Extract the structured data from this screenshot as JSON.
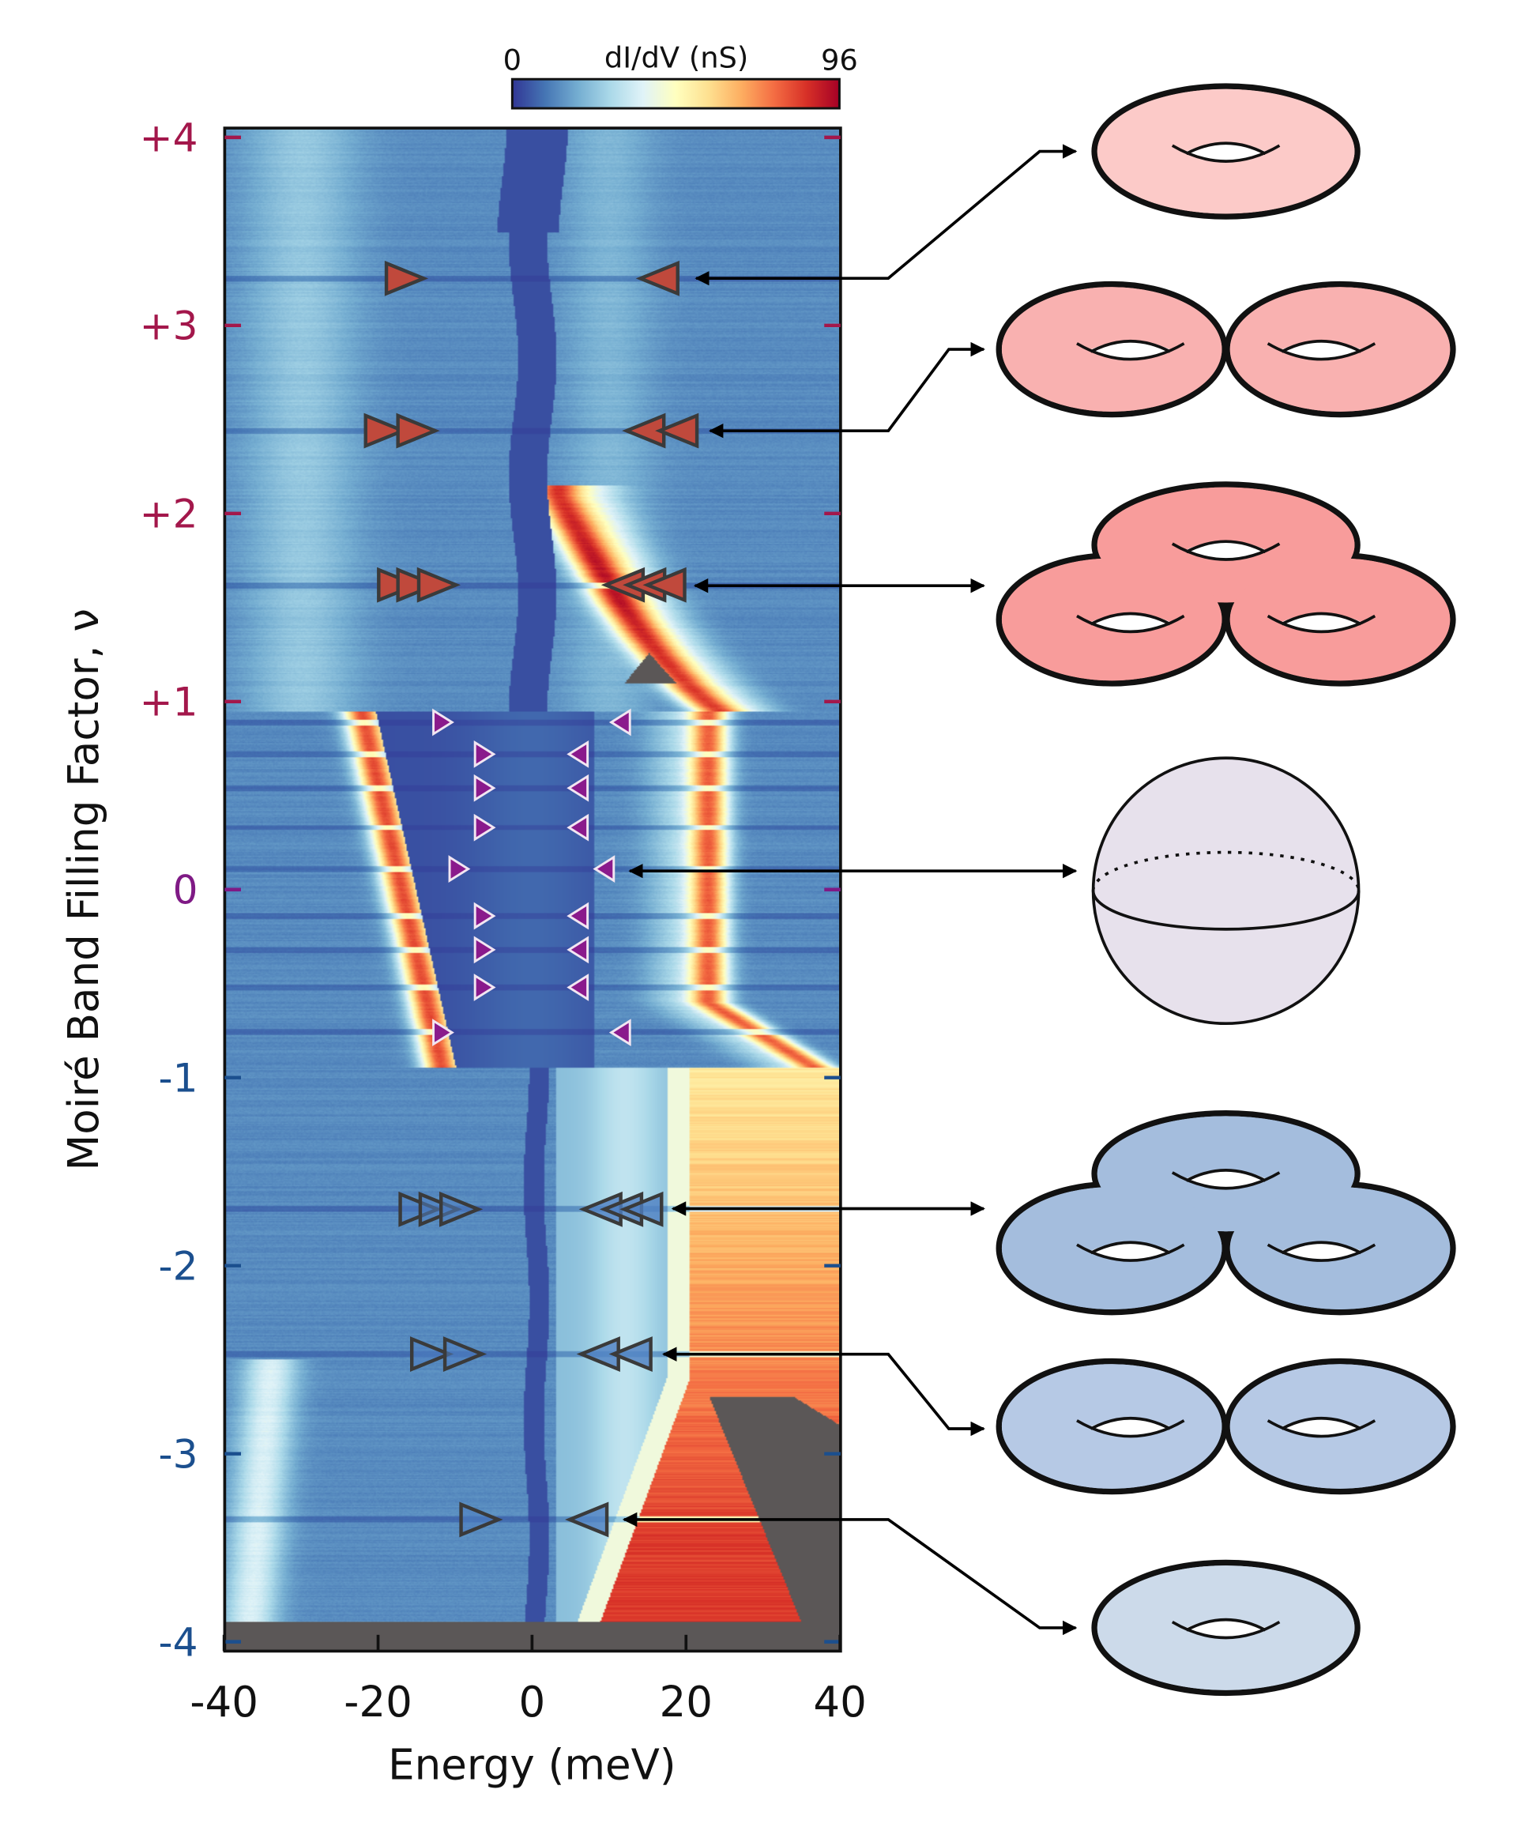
{
  "chart_data": {
    "type": "heatmap",
    "xlabel": "Energy (meV)",
    "ylabel": "Moiré Band Filling Factor, ν",
    "xlim": [
      -40,
      40
    ],
    "ylim": [
      -4.05,
      4.05
    ],
    "xticks": [
      {
        "value": -40,
        "label": "-40"
      },
      {
        "value": -20,
        "label": "-20"
      },
      {
        "value": 0,
        "label": "0"
      },
      {
        "value": 20,
        "label": "20"
      },
      {
        "value": 40,
        "label": "40"
      }
    ],
    "yticks": [
      {
        "value": 4,
        "label": "+4",
        "color": "#a3174b"
      },
      {
        "value": 3,
        "label": "+3",
        "color": "#a3174b"
      },
      {
        "value": 2,
        "label": "+2",
        "color": "#a3174b"
      },
      {
        "value": 1,
        "label": "+1",
        "color": "#a3174b"
      },
      {
        "value": 0,
        "label": "0",
        "color": "#7f1a85"
      },
      {
        "value": -1,
        "label": "-1",
        "color": "#1b4f8e"
      },
      {
        "value": -2,
        "label": "-2",
        "color": "#1b4f8e"
      },
      {
        "value": -3,
        "label": "-3",
        "color": "#1b4f8e"
      },
      {
        "value": -4,
        "label": "-4",
        "color": "#1b4f8e"
      }
    ],
    "colorbar": {
      "label": "dI/dV (nS)",
      "min_label": "0",
      "max_label": "96",
      "min": 0,
      "max": 96,
      "colormap": [
        "#313695",
        "#4575b4",
        "#74add1",
        "#abd9e9",
        "#e0f3f8",
        "#ffffbf",
        "#fee090",
        "#fdae61",
        "#f46d43",
        "#d73027",
        "#a50026"
      ]
    },
    "no_data_color": "#5b5757",
    "marker_groups": [
      {
        "filling": 3.25,
        "style": "red",
        "right_pointing": [
          -16.5
        ],
        "left_pointing": [
          16.5
        ]
      },
      {
        "filling": 2.44,
        "style": "red",
        "right_pointing": [
          -19.2,
          -15.0
        ],
        "left_pointing": [
          14.7,
          19.0
        ]
      },
      {
        "filling": 1.62,
        "style": "red",
        "right_pointing": [
          -17.5,
          -15.0,
          -12.3
        ],
        "left_pointing": [
          12.0,
          14.8,
          17.4
        ]
      },
      {
        "filling": 0.89,
        "style": "purple",
        "right_pointing": [
          -11.6
        ],
        "left_pointing": [
          11.5
        ]
      },
      {
        "filling": 0.72,
        "style": "purple",
        "right_pointing": [
          -6.2
        ],
        "left_pointing": [
          6.0
        ]
      },
      {
        "filling": 0.54,
        "style": "purple",
        "right_pointing": [
          -6.2
        ],
        "left_pointing": [
          6.0
        ]
      },
      {
        "filling": 0.33,
        "style": "purple",
        "right_pointing": [
          -6.2
        ],
        "left_pointing": [
          6.0
        ]
      },
      {
        "filling": 0.11,
        "style": "purple",
        "right_pointing": [
          -9.5
        ],
        "left_pointing": [
          9.4
        ]
      },
      {
        "filling": -0.14,
        "style": "purple",
        "right_pointing": [
          -6.2
        ],
        "left_pointing": [
          6.0
        ]
      },
      {
        "filling": -0.32,
        "style": "purple",
        "right_pointing": [
          -6.2
        ],
        "left_pointing": [
          6.0
        ]
      },
      {
        "filling": -0.52,
        "style": "purple",
        "right_pointing": [
          -6.2
        ],
        "left_pointing": [
          6.0
        ]
      },
      {
        "filling": -0.76,
        "style": "purple",
        "right_pointing": [
          -11.6
        ],
        "left_pointing": [
          11.5
        ]
      },
      {
        "filling": -1.7,
        "style": "blue",
        "right_pointing": [
          -14.7,
          -12.1,
          -9.4
        ],
        "left_pointing": [
          9.1,
          11.8,
          14.4
        ]
      },
      {
        "filling": -2.47,
        "style": "blue",
        "right_pointing": [
          -13.2,
          -8.9
        ],
        "left_pointing": [
          8.8,
          13.0
        ]
      },
      {
        "filling": -3.35,
        "style": "blue",
        "right_pointing": [
          -6.8
        ],
        "left_pointing": [
          7.3
        ]
      }
    ],
    "marker_styles": {
      "red": {
        "fill": "#c0493c",
        "stroke": "#3a3a3a"
      },
      "purple": {
        "fill": "#8a1a8c",
        "stroke": "#f2e6f2"
      },
      "blue": {
        "fill": "#4f80c2",
        "stroke": "#3a3a3a"
      }
    }
  },
  "schematics": [
    {
      "shape": "torus-genus-1",
      "filling": 3.25,
      "fill": "#fccac8"
    },
    {
      "shape": "torus-genus-2",
      "filling": 2.44,
      "fill": "#f9b1b0"
    },
    {
      "shape": "torus-genus-3",
      "filling": 1.62,
      "fill": "#f89c9b"
    },
    {
      "shape": "sphere",
      "filling": 0.11,
      "fill": "#e7e1ec"
    },
    {
      "shape": "torus-genus-3",
      "filling": -1.7,
      "fill": "#a4bddd"
    },
    {
      "shape": "torus-genus-2",
      "filling": -2.47,
      "fill": "#b6c9e5"
    },
    {
      "shape": "torus-genus-1",
      "filling": -3.35,
      "fill": "#ccdaea"
    }
  ]
}
